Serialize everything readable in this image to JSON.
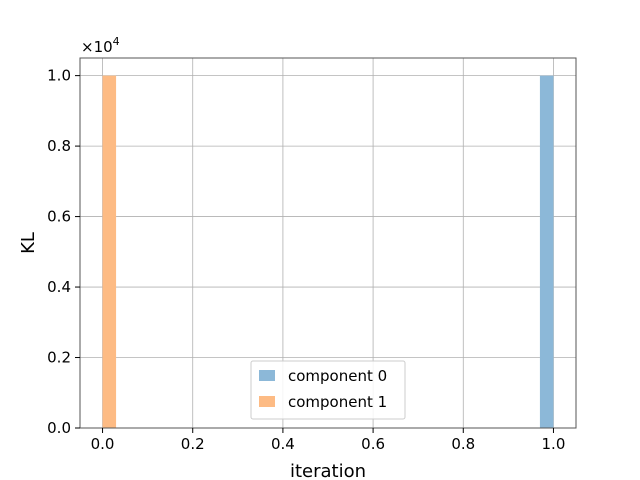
{
  "chart_data": {
    "type": "bar",
    "xlabel": "iteration",
    "ylabel": "KL",
    "y_offset_label": "×10",
    "y_offset_exponent": "4",
    "xlim": [
      -0.05,
      1.05
    ],
    "ylim": [
      0,
      1.05
    ],
    "x_ticks": [
      0.0,
      0.2,
      0.4,
      0.6,
      0.8,
      1.0
    ],
    "x_tick_labels": [
      "0.0",
      "0.2",
      "0.4",
      "0.6",
      "0.8",
      "1.0"
    ],
    "y_ticks": [
      0.0,
      0.2,
      0.4,
      0.6,
      0.8,
      1.0
    ],
    "y_tick_labels": [
      "0.0",
      "0.2",
      "0.4",
      "0.6",
      "0.8",
      "1.0"
    ],
    "grid": true,
    "legend_position": "lower center",
    "series": [
      {
        "name": "component 0",
        "color": "#8cb8d8",
        "bins": [
          {
            "x0": 0.97,
            "x1": 1.0,
            "value": 1.0
          }
        ]
      },
      {
        "name": "component 1",
        "color": "#fdbb84",
        "bins": [
          {
            "x0": 0.0,
            "x1": 0.03,
            "value": 1.0
          }
        ]
      }
    ]
  }
}
